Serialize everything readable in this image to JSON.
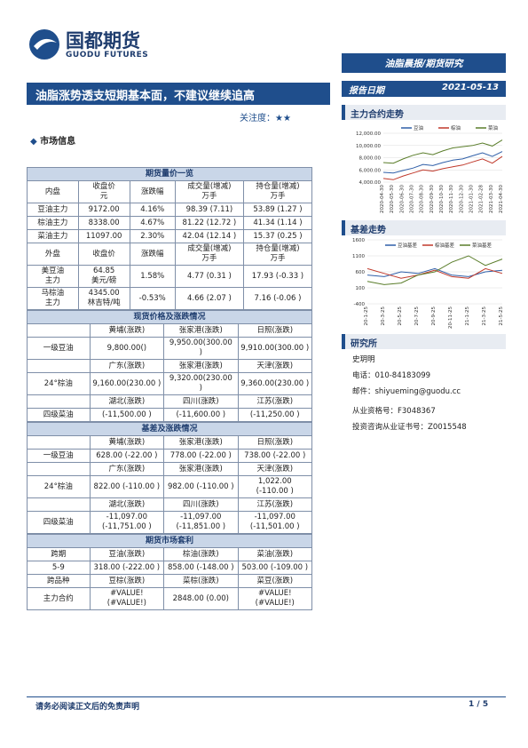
{
  "header": {
    "logo_cn": "国都期货",
    "logo_en": "GUODU FUTURES",
    "banner": "油脂晨报/期货研究",
    "title": "油脂涨势透支短期基本面，不建议继续追高",
    "attention": "关注度：★★",
    "date_label": "报告日期",
    "date": "2021-05-13"
  },
  "section_title": "市场信息",
  "market": {
    "futures": {
      "title": "期货量价一览",
      "header": [
        "内盘",
        "收盘价\n元",
        "涨跌幅",
        "成交量(增减)\n万手",
        "持仓量(增减)\n万手"
      ],
      "rows": [
        [
          "豆油主力",
          "9172.00",
          "4.16%",
          "98.39 (7.11)",
          "53.89 (1.27 )"
        ],
        [
          "棕油主力",
          "8338.00",
          "4.67%",
          "81.22 (12.72 )",
          "41.34 (1.14 )"
        ],
        [
          "菜油主力",
          "11097.00",
          "2.30%",
          "42.04 (12.14 )",
          "15.37 (0.25 )"
        ]
      ],
      "header2": [
        "外盘",
        "收盘价",
        "涨跌幅",
        "成交量(增减)\n万手",
        "持仓量(增减)\n万手"
      ],
      "rows2": [
        [
          "美豆油\n主力",
          "64.85\n美元/磅",
          "1.58%",
          "4.77 (0.31 )",
          "17.93 (-0.33 )"
        ],
        [
          "马棕油\n主力",
          "4345.00\n林吉特/吨",
          "-0.53%",
          "4.66 (2.07 )",
          "7.16 (-0.06 )"
        ]
      ]
    },
    "spot": {
      "title": "现货价格及涨跌情况",
      "blocks": [
        {
          "name": "一级豆油",
          "labels": [
            "黄埔(涨跌)",
            "张家港(涨跌)",
            "日照(涨跌)"
          ],
          "values": [
            "9,800.00()",
            "9,950.00(300.00\n)",
            "9,910.00(300.00 )"
          ]
        },
        {
          "name": "24°棕油",
          "labels": [
            "广东(涨跌)",
            "张家港(涨跌)",
            "天津(涨跌)"
          ],
          "values": [
            "9,160.00(230.00 )",
            "9,320.00(230.00\n)",
            "9,360.00(230.00 )"
          ]
        },
        {
          "name": "四级菜油",
          "labels": [
            "湖北(涨跌)",
            "四川(涨跌)",
            "江苏(涨跌)"
          ],
          "values": [
            "(-11,500.00 )",
            "(-11,600.00 )",
            "(-11,250.00 )"
          ]
        }
      ]
    },
    "basis": {
      "title": "基差及涨跌情况",
      "blocks": [
        {
          "name": "一级豆油",
          "labels": [
            "黄埔(涨跌)",
            "张家港(涨跌)",
            "日照(涨跌)"
          ],
          "values": [
            "628.00 (-22.00 )",
            "778.00 (-22.00 )",
            "738.00 (-22.00 )"
          ]
        },
        {
          "name": "24°棕油",
          "labels": [
            "广东(涨跌)",
            "张家港(涨跌)",
            "天津(涨跌)"
          ],
          "values": [
            "822.00 (-110.00 )",
            "982.00 (-110.00 )",
            "1,022.00\n(-110.00 )"
          ]
        },
        {
          "name": "四级菜油",
          "labels": [
            "湖北(涨跌)",
            "四川(涨跌)",
            "江苏(涨跌)"
          ],
          "values": [
            "-11,097.00\n(-11,751.00 )",
            "-11,097.00\n(-11,851.00 )",
            "-11,097.00\n(-11,501.00 )"
          ]
        }
      ]
    },
    "arbitrage": {
      "title": "期货市场套利",
      "rows": [
        [
          "跨期",
          "豆油(涨跌)",
          "棕油(涨跌)",
          "菜油(涨跌)"
        ],
        [
          "5-9",
          "318.00 (-222.00 )",
          "858.00 (-148.00 )",
          "503.00 (-109.00 )"
        ],
        [
          "跨品种",
          "豆棕(涨跌)",
          "菜棕(涨跌)",
          "菜豆(涨跌)"
        ],
        [
          "主力合约",
          "#VALUE!\n(#VALUE!)",
          "2848.00  (0.00)",
          "#VALUE!\n(#VALUE!)"
        ]
      ]
    }
  },
  "chart_data": [
    {
      "type": "line",
      "title": "主力合约走势",
      "categories": [
        "2020-04-30",
        "2020-05-30",
        "2020-06-30",
        "2020-07-30",
        "2020-08-30",
        "2020-09-30",
        "2020-10-30",
        "2020-11-30",
        "2020-12-30",
        "2021-01-30",
        "2021-02-28",
        "2021-03-30",
        "2021-04-30"
      ],
      "series": [
        {
          "name": "豆油",
          "color": "#2f5fa8",
          "values": [
            5600,
            5500,
            5900,
            6300,
            6900,
            6700,
            7200,
            7600,
            7800,
            8300,
            8800,
            8200,
            9000
          ]
        },
        {
          "name": "棕油",
          "color": "#c0392b",
          "values": [
            4600,
            4400,
            5000,
            5500,
            6000,
            5800,
            6200,
            6500,
            6800,
            7300,
            7800,
            7100,
            8200
          ]
        },
        {
          "name": "菜油",
          "color": "#5a7d2a",
          "values": [
            7200,
            7100,
            7800,
            8400,
            8800,
            8500,
            9100,
            9600,
            9800,
            10000,
            10400,
            9900,
            10900
          ]
        }
      ],
      "ylim": [
        4000,
        12000
      ],
      "yticks": [
        {
          "value": 4000,
          "label": "4,000.00"
        },
        {
          "value": 6000,
          "label": "6,000.00"
        },
        {
          "value": 8000,
          "label": "8,000.00"
        },
        {
          "value": 10000,
          "label": "10,000.00"
        },
        {
          "value": 12000,
          "label": "12,000.00"
        }
      ],
      "grid": true
    },
    {
      "type": "line",
      "title": "基差走势",
      "categories": [
        "20-1-25",
        "20-3-25",
        "20-5-25",
        "20-7-25",
        "20-9-25",
        "20-11-25",
        "21-1-25",
        "21-3-25",
        "21-5-25"
      ],
      "series": [
        {
          "name": "豆油基差",
          "color": "#2f5fa8",
          "values": [
            500,
            450,
            600,
            550,
            700,
            500,
            450,
            600,
            650
          ]
        },
        {
          "name": "棕油基差",
          "color": "#c0392b",
          "values": [
            700,
            550,
            400,
            500,
            650,
            450,
            400,
            700,
            550
          ]
        },
        {
          "name": "菜油基差",
          "color": "#5a7d2a",
          "values": [
            300,
            200,
            250,
            500,
            600,
            900,
            1100,
            800,
            1000
          ]
        }
      ],
      "ylim": [
        -400,
        1600
      ],
      "yticks": [
        -400,
        100,
        600,
        1100,
        1600
      ],
      "grid": true
    }
  ],
  "research": {
    "title": "研究所",
    "name": "史玥明",
    "phone": "电话：010-84183099",
    "email": "邮件：shiyueming@guodu.cc",
    "cert": "从业资格号：F3048367",
    "advisory": "投资咨询从业证书号：Z0015548"
  },
  "footer": {
    "disclaimer": "请务必阅读正文后的免责声明",
    "page": "1 / 5"
  }
}
